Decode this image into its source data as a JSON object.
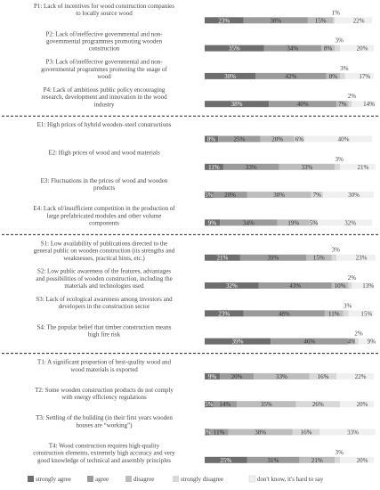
{
  "chart_data": {
    "type": "bar",
    "orientation": "horizontal",
    "stacked": "100%",
    "legend_position": "bottom",
    "colors": [
      "#6e6e6e",
      "#9b9b9b",
      "#bdbdbd",
      "#d8d8d8",
      "#f0f0f0"
    ],
    "series": [
      {
        "name": "strongly agree"
      },
      {
        "name": "agree"
      },
      {
        "name": "disagree"
      },
      {
        "name": "strongly disagree"
      },
      {
        "name": "don't know, it's hard to say"
      }
    ],
    "groups": [
      {
        "name": "P",
        "items": [
          {
            "label": [
              "P1: Lack of incentives for wood construction companies",
              "to locally source wood"
            ],
            "values": [
              23,
              38,
              15,
              1,
              22
            ]
          },
          {
            "label": [
              "P2: Lack of/ineffective governmental and non-",
              "governmental programmes promoting wooden",
              "construction"
            ],
            "values": [
              35,
              34,
              8,
              3,
              20
            ]
          },
          {
            "label": [
              "P3: Lack of/ineffective governmental and non-",
              "governmental programmes promoting the usage of",
              "wood"
            ],
            "values": [
              30,
              42,
              8,
              3,
              17
            ]
          },
          {
            "label": [
              "P4: Lack of ambitious public policy encouraging",
              "research, development and innovation in the wood",
              "industry"
            ],
            "values": [
              38,
              40,
              7,
              2,
              14
            ]
          }
        ]
      },
      {
        "name": "E",
        "items": [
          {
            "label": [
              "E1: High prices of hybrid wooden–steel constructions"
            ],
            "values": [
              8,
              25,
              20,
              6,
              40
            ]
          },
          {
            "label": [
              "E2: High prices of wood and wood materials"
            ],
            "values": [
              11,
              33,
              33,
              3,
              21
            ]
          },
          {
            "label": [
              "E3: Fluctuations in the prices of wood and wooden",
              "products"
            ],
            "values": [
              5,
              20,
              38,
              7,
              30
            ]
          },
          {
            "label": [
              "E4: Lack of/insufficient competition in the production of",
              "large prefabricated modules and other volume",
              "components"
            ],
            "values": [
              9,
              34,
              19,
              5,
              32
            ]
          }
        ]
      },
      {
        "name": "S",
        "items": [
          {
            "label": [
              "S1: Low availability of publications directed to the",
              "general public on wooden construction (its strengths and",
              "weaknesses, practical hints, etc.)"
            ],
            "values": [
              21,
              39,
              15,
              3,
              23
            ]
          },
          {
            "label": [
              "S2: Low public awareness of the features, advantages",
              "and possibilities of wooden construction, including the",
              "materials and technologies used"
            ],
            "values": [
              32,
              43,
              10,
              2,
              13
            ]
          },
          {
            "label": [
              "S3: Lack of ecological awareness among investors and",
              "developers in the construction sector"
            ],
            "values": [
              23,
              48,
              11,
              3,
              15
            ]
          },
          {
            "label": [
              "S4: The popular belief that timber construction means",
              "high fire risk"
            ],
            "values": [
              39,
              46,
              4,
              2,
              9
            ]
          }
        ]
      },
      {
        "name": "T",
        "items": [
          {
            "label": [
              "T1: A significant proportion of best-quality wood and",
              "wood materials is exported"
            ],
            "values": [
              9,
              20,
              33,
              16,
              22
            ]
          },
          {
            "label": [
              "T2: Some wooden construction products do not comply",
              "with energy efficiency regulations"
            ],
            "values": [
              5,
              14,
              35,
              26,
              20
            ]
          },
          {
            "label": [
              "T3: Settling of the building (in their first years wooden",
              "houses are “working”)"
            ],
            "values": [
              3,
              11,
              38,
              16,
              33
            ]
          },
          {
            "label": [
              "T4: Wood construction requires high-quality",
              "construction elements, extremely high accuracy and very",
              "good knowledge of technical and assembly principles"
            ],
            "values": [
              25,
              31,
              21,
              3,
              20
            ]
          }
        ]
      }
    ]
  }
}
